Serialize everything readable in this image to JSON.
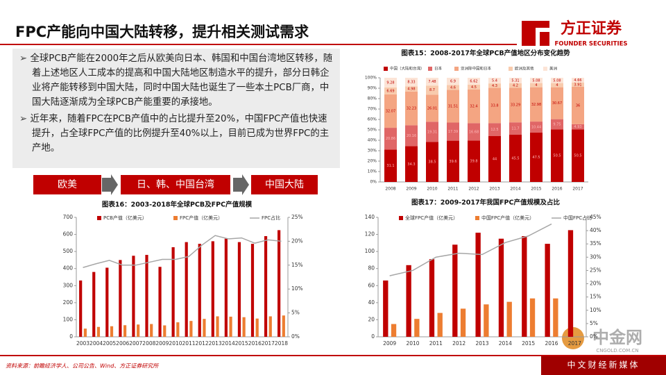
{
  "header": {
    "title": "FPC产能向中国大陆转移，提升相关测试需求",
    "logo": "方正证券",
    "logo_en": "FOUNDER SECURITIES"
  },
  "text_box": {
    "bullets": [
      "全球PCB产能在2000年之后从欧美向日本、韩国和中国台湾地区转移，随着上述地区人工成本的提高和中国大陆地区制造水平的提升，部分日韩企业将产能转移到中国大陆，同时中国大陆也诞生了一些本土PCB厂商，中国大陆逐渐成为全球PCB产能重要的承接地。",
      "近年来，随着FPC在PCB产值中的占比提升至20%，中国FPC产值也快速提升，占全球FPC产值的比例提升至40%以上，目前已成为世界FPC的主产地。"
    ]
  },
  "flow": {
    "steps": [
      "欧美",
      "日、韩、中国台湾",
      "中国大陆"
    ]
  },
  "footer": {
    "source": "资料来源：前瞻经济学人、公司公告、Wind、方正证券研究所"
  },
  "watermark": {
    "name": "中金网",
    "domain": "CNGOLD.COM.CN",
    "slogan": "中文财经新媒体"
  },
  "chart_data": [
    {
      "type": "stacked_bar",
      "title": "图表15：2008-2017年全球PCB产值地区分布变化趋势",
      "categories": [
        "2008",
        "2009",
        "2010",
        "2011",
        "2012",
        "2013",
        "2014",
        "2015",
        "2016",
        "2017"
      ],
      "series": [
        {
          "name": "中国（大陆和台湾）",
          "color": "#c00000",
          "values": [
            31.1,
            34.3,
            38.5,
            39.6,
            39.8,
            44.0,
            45.5,
            47.5,
            50.5,
            50.5
          ]
        },
        {
          "name": "日本",
          "color": "#e06666",
          "values": [
            20.86,
            20.16,
            19.31,
            17.39,
            16.68,
            12.5,
            11.7,
            10.44,
            9.75,
            4.93
          ]
        },
        {
          "name": "亚洲除中国和日本",
          "color": "#f4a582",
          "values": [
            32.07,
            32.23,
            26.01,
            31.51,
            32.4,
            33.8,
            33.29,
            32.98,
            30.67,
            36.0
          ]
        },
        {
          "name": "欧洲及其他",
          "color": "#f8cbad",
          "values": [
            6.69,
            4.98,
            8.7,
            4.6,
            4.5,
            4.3,
            4.2,
            4.0,
            4.0,
            3.91
          ]
        },
        {
          "name": "美洲",
          "color": "#fce4d6",
          "values": [
            9.28,
            8.33,
            7.48,
            6.9,
            6.62,
            5.4,
            5.31,
            5.08,
            5.08,
            4.66
          ]
        }
      ],
      "ylim": [
        0,
        100
      ],
      "yticks": [
        {
          "value": 0,
          "label": "0%"
        },
        {
          "value": 10,
          "label": "10%"
        },
        {
          "value": 20,
          "label": "20%"
        },
        {
          "value": 30,
          "label": "30%"
        },
        {
          "value": 40,
          "label": "40%"
        },
        {
          "value": 50,
          "label": "50%"
        },
        {
          "value": 60,
          "label": "60%"
        },
        {
          "value": 70,
          "label": "70%"
        },
        {
          "value": 80,
          "label": "80%"
        },
        {
          "value": 90,
          "label": "90%"
        },
        {
          "value": 100,
          "label": "100%"
        }
      ]
    },
    {
      "type": "bar_line",
      "title": "图表16：2003-2018年全球PCB及FPC产值规模",
      "categories": [
        "2003",
        "2004",
        "2005",
        "2006",
        "2007",
        "2008",
        "2009",
        "2010",
        "2011",
        "2012",
        "2013",
        "2014",
        "2015",
        "2016",
        "2017",
        "2018"
      ],
      "series": [
        {
          "name": "PCB产值（亿美元）",
          "color": "#c00000",
          "values": [
            330,
            380,
            405,
            450,
            475,
            480,
            410,
            525,
            555,
            545,
            560,
            575,
            555,
            545,
            590,
            625
          ]
        },
        {
          "name": "FPC产值（亿美元）",
          "color": "#ed7d31",
          "values": [
            48,
            58,
            62,
            68,
            72,
            75,
            67,
            85,
            93,
            105,
            120,
            118,
            115,
            107,
            120,
            125
          ]
        },
        {
          "name": "FPC占比",
          "color": "#a6a6a6",
          "axis": "y2",
          "values": [
            14.5,
            15.3,
            16.0,
            15.0,
            15.0,
            15.6,
            16.2,
            16.2,
            16.8,
            19.2,
            21.2,
            20.5,
            20.7,
            19.6,
            20.3,
            20.0
          ]
        }
      ],
      "ylim": [
        0,
        700
      ],
      "yticks": [
        0,
        100,
        200,
        300,
        400,
        500,
        600,
        700
      ],
      "y2lim": [
        0,
        25
      ],
      "y2ticks": [
        {
          "value": 0,
          "label": "0%"
        },
        {
          "value": 5,
          "label": "5%"
        },
        {
          "value": 10,
          "label": "10%"
        },
        {
          "value": 15,
          "label": "15%"
        },
        {
          "value": 20,
          "label": "20%"
        },
        {
          "value": 25,
          "label": "25%"
        }
      ]
    },
    {
      "type": "bar_line",
      "title": "图表17：2009-2017年我国FPC产值规模及占比",
      "categories": [
        "2009",
        "2010",
        "2011",
        "2012",
        "2013",
        "2014",
        "2015",
        "2016",
        "2017"
      ],
      "series": [
        {
          "name": "全球FPC产值（亿美元）",
          "color": "#c00000",
          "values": [
            66,
            84,
            91,
            108,
            122,
            115,
            118,
            109,
            125
          ]
        },
        {
          "name": "中国FPC产值（亿美元）",
          "color": "#ed7d31",
          "values": [
            15,
            21,
            28,
            33,
            38,
            41,
            45,
            45,
            null
          ]
        },
        {
          "name": "中国FPC占比",
          "color": "#a6a6a6",
          "axis": "y2",
          "values": [
            23,
            25,
            30,
            31.5,
            31,
            35.5,
            38,
            42.5,
            null
          ]
        }
      ],
      "ylim": [
        0,
        140
      ],
      "yticks": [
        0,
        20,
        40,
        60,
        80,
        100,
        120,
        140
      ],
      "y2lim": [
        0,
        45
      ],
      "y2ticks": [
        {
          "value": 0,
          "label": "0%"
        },
        {
          "value": 5,
          "label": "5%"
        },
        {
          "value": 10,
          "label": "10%"
        },
        {
          "value": 15,
          "label": "15%"
        },
        {
          "value": 20,
          "label": "20%"
        },
        {
          "value": 25,
          "label": "25%"
        },
        {
          "value": 30,
          "label": "30%"
        },
        {
          "value": 35,
          "label": "35%"
        },
        {
          "value": 40,
          "label": "40%"
        },
        {
          "value": 45,
          "label": "45%"
        }
      ]
    }
  ]
}
